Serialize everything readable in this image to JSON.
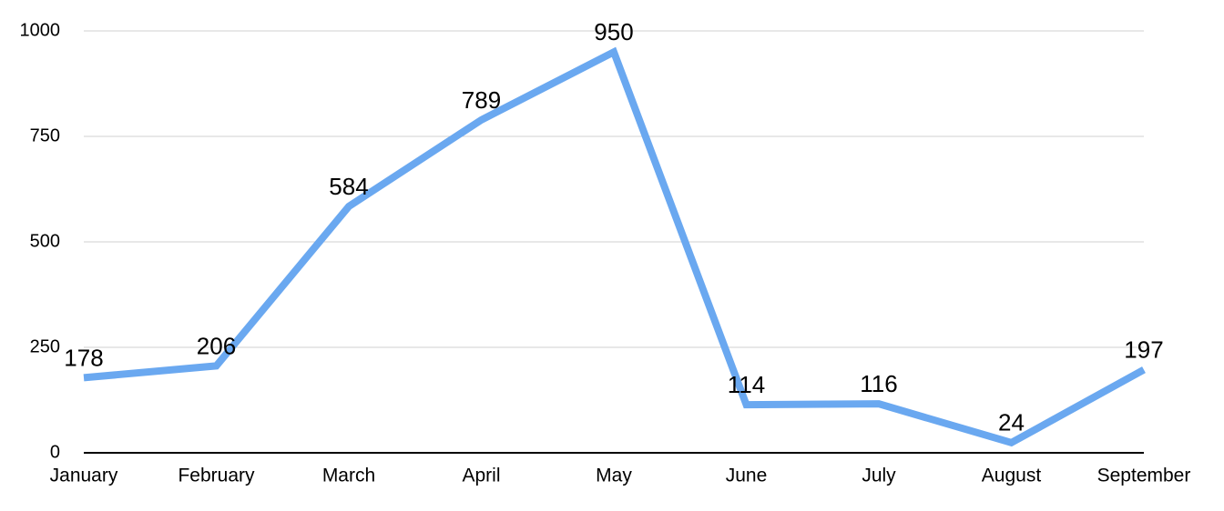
{
  "chart_data": {
    "type": "line",
    "categories": [
      "January",
      "February",
      "March",
      "April",
      "May",
      "June",
      "July",
      "August",
      "September"
    ],
    "values": [
      178,
      206,
      584,
      789,
      950,
      114,
      116,
      24,
      197
    ],
    "color": "#6aa8f0",
    "ylim": [
      0,
      1000
    ],
    "yticks": [
      0,
      250,
      500,
      750,
      1000
    ],
    "grid": true
  }
}
